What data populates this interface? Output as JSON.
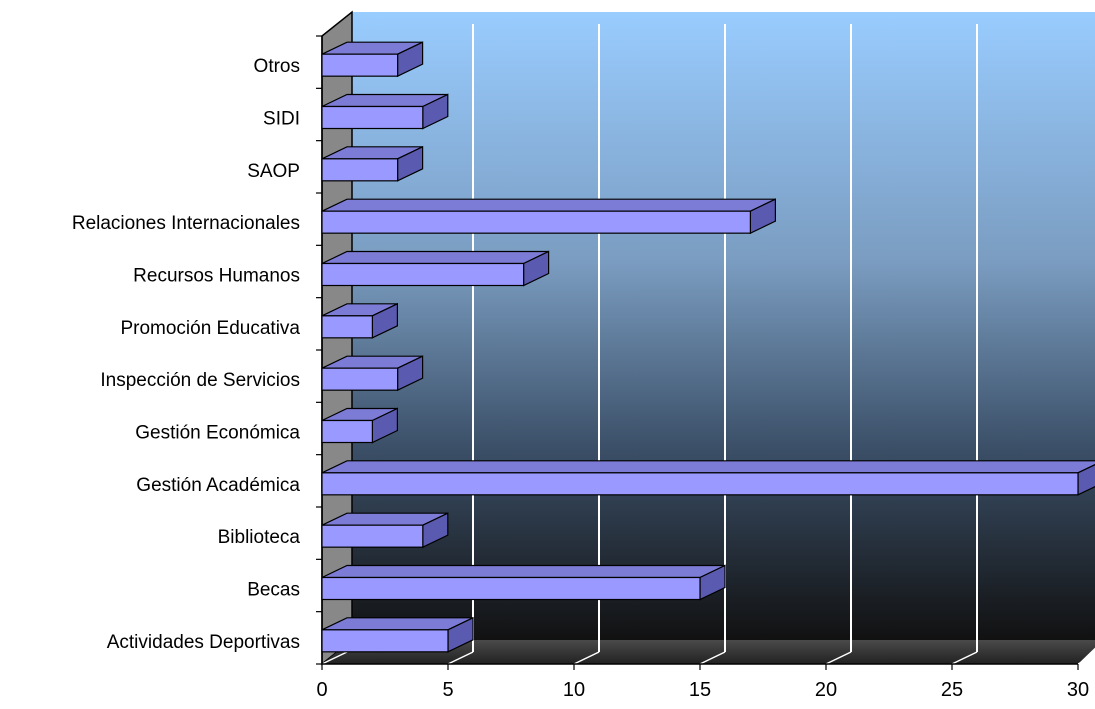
{
  "chart_data": {
    "type": "bar",
    "orientation": "horizontal",
    "style": "3d",
    "categories": [
      "Otros",
      "SIDI",
      "SAOP",
      "Relaciones Internacionales",
      "Recursos Humanos",
      "Promoción Educativa",
      "Inspección de Servicios",
      "Gestión Económica",
      "Gestión Académica",
      "Biblioteca",
      "Becas",
      "Actividades Deportivas"
    ],
    "values": [
      3,
      4,
      3,
      17,
      8,
      2,
      3,
      2,
      30,
      4,
      15,
      5
    ],
    "xlim": [
      0,
      30
    ],
    "xticks": [
      "0",
      "5",
      "10",
      "15",
      "20",
      "25",
      "30"
    ],
    "grid": "vertical",
    "legend": "none",
    "title": "",
    "xlabel": "",
    "ylabel": "",
    "colors": {
      "bar_front": "#9999ff",
      "bar_top": "#7c7cd6",
      "bar_side": "#5a5ab0",
      "wall_top": "#99ccff",
      "wall_bottom": "#111111",
      "side_wall": "#888888",
      "grid": "#ffffff",
      "outline": "#000000"
    }
  }
}
